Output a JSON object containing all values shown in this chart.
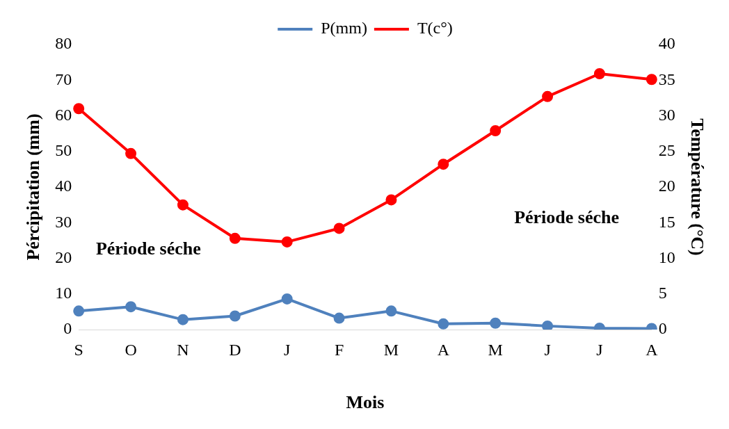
{
  "chart_data": {
    "type": "line",
    "xlabel": "Mois",
    "ylabel": "Pércipitation (mm)",
    "y2label": "Température (°C)",
    "categories": [
      "S",
      "O",
      "N",
      "D",
      "J",
      "F",
      "M",
      "A",
      "M",
      "J",
      "J",
      "A"
    ],
    "series": [
      {
        "name": "P(mm)",
        "color": "#4f81bd",
        "values": [
          5.2,
          6.4,
          2.8,
          3.8,
          8.6,
          3.2,
          5.2,
          1.6,
          1.8,
          1.0,
          0.4,
          0.3
        ]
      },
      {
        "name": "T(c°)",
        "color": "#ff0000",
        "axis": "y2",
        "values": [
          31.0,
          24.7,
          17.5,
          12.8,
          12.3,
          14.2,
          18.2,
          23.2,
          27.9,
          32.7,
          35.9,
          35.1
        ]
      }
    ],
    "ylim": [
      0,
      80
    ],
    "yticks": [
      0,
      10,
      20,
      30,
      40,
      50,
      60,
      70,
      80
    ],
    "y2lim": [
      0,
      40
    ],
    "y2ticks": [
      0,
      5,
      10,
      15,
      20,
      25,
      30,
      35,
      40
    ],
    "annotations": [
      "Période séche",
      "Période séche"
    ],
    "grid": false,
    "legend": "top",
    "marker": "circle",
    "line_style": "solid"
  }
}
